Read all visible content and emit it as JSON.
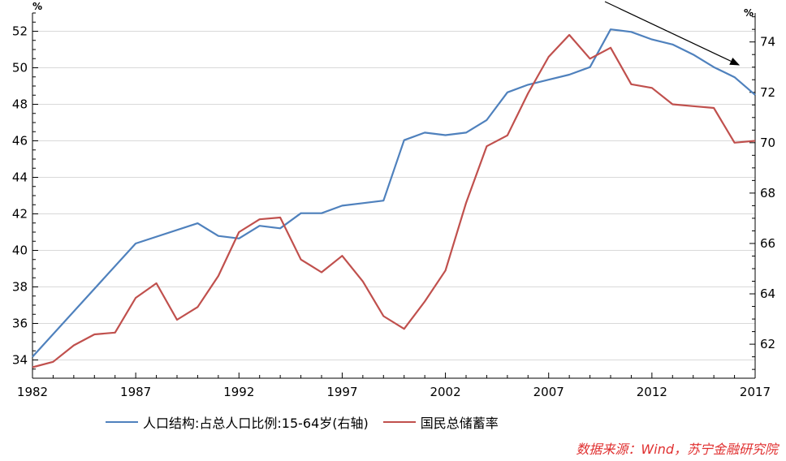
{
  "chart_data": {
    "type": "line",
    "left_axis": {
      "unit": "%",
      "ylim": [
        33,
        53
      ],
      "ticks": [
        34,
        36,
        38,
        40,
        42,
        44,
        46,
        48,
        50,
        52
      ]
    },
    "right_axis": {
      "unit": "%",
      "ylim": [
        60.65,
        75.15
      ],
      "ticks": [
        62,
        64,
        66,
        68,
        70,
        72,
        74
      ]
    },
    "x_axis": {
      "xlim": [
        1982,
        2017
      ],
      "tick_labels": [
        "1982",
        "1987",
        "1992",
        "1997",
        "2002",
        "2007",
        "2012",
        "2017"
      ]
    },
    "series": [
      {
        "name": "人口结构:占总人口比例:15-64岁(右轴)",
        "axis": "right",
        "color": "#4F81BD",
        "x": [
          1982,
          1987,
          1990,
          1991,
          1992,
          1993,
          1994,
          1995,
          1996,
          1997,
          1998,
          1999,
          2000,
          2001,
          2002,
          2003,
          2004,
          2005,
          2006,
          2007,
          2008,
          2009,
          2010,
          2011,
          2012,
          2013,
          2014,
          2015,
          2016,
          2017
        ],
        "values": [
          61.5,
          66.0,
          66.8,
          66.3,
          66.2,
          66.7,
          66.6,
          67.2,
          67.2,
          67.5,
          67.6,
          67.7,
          70.1,
          70.4,
          70.3,
          70.4,
          70.9,
          72.0,
          72.3,
          72.5,
          72.7,
          73.0,
          74.5,
          74.4,
          74.1,
          73.9,
          73.5,
          73.0,
          72.6,
          71.9
        ]
      },
      {
        "name": "国民总储蓄率",
        "axis": "left",
        "color": "#C0504D",
        "x": [
          1982,
          1983,
          1984,
          1985,
          1986,
          1987,
          1988,
          1989,
          1990,
          1991,
          1992,
          1993,
          1994,
          1995,
          1996,
          1997,
          1998,
          1999,
          2000,
          2001,
          2002,
          2003,
          2004,
          2005,
          2006,
          2007,
          2008,
          2009,
          2010,
          2011,
          2012,
          2013,
          2014,
          2015,
          2016,
          2017
        ],
        "values": [
          33.6,
          33.9,
          34.8,
          35.4,
          35.5,
          37.4,
          38.2,
          36.2,
          36.9,
          38.6,
          41.0,
          41.7,
          41.8,
          39.5,
          38.8,
          39.7,
          38.3,
          36.4,
          35.7,
          37.2,
          38.9,
          42.6,
          45.7,
          46.3,
          48.6,
          50.6,
          51.8,
          50.5,
          51.1,
          49.1,
          48.9,
          48.0,
          47.9,
          47.8,
          45.9,
          46.0
        ]
      }
    ],
    "legend_position": "bottom",
    "grid": "horizontal"
  },
  "source_text": "数据来源：Wind，苏宁金融研究院"
}
